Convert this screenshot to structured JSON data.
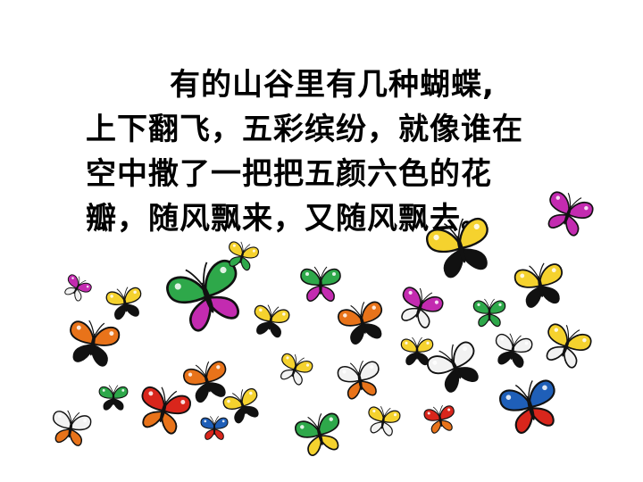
{
  "slide": {
    "passage_lines": [
      "有的山谷里有几种蝴蝶,",
      "上下翻飞，五彩缤纷，就像谁在",
      "空中撒了一把把五颜六色的花",
      "瓣，随风飘来，又随风飘去。"
    ]
  },
  "illustration": {
    "subject": "butterfly-icon",
    "palette": [
      "#E8731A",
      "#F5D22E",
      "#2EA84A",
      "#C32BB0",
      "#D9261C",
      "#1F5FB8",
      "#111111",
      "#F2F2F2"
    ]
  }
}
